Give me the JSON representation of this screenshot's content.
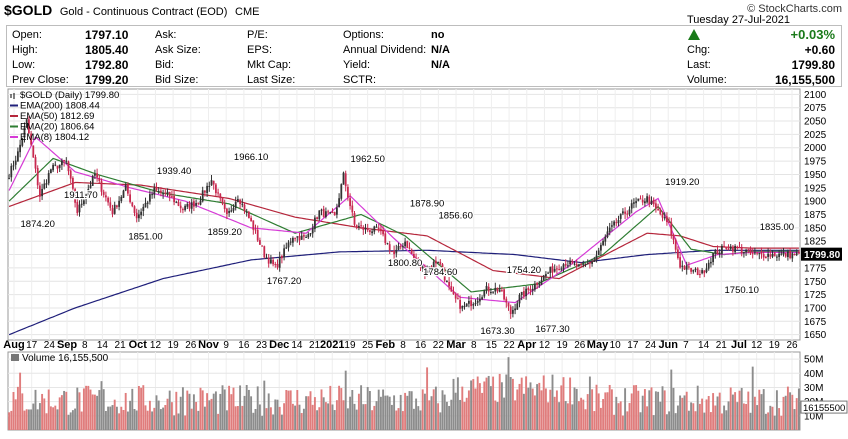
{
  "header": {
    "symbol": "$GOLD",
    "name": "Gold - Continuous Contract (EOD)",
    "exchange": "CME",
    "credit": "© StockCharts.com"
  },
  "quote": {
    "col1": [
      {
        "label": "Open:",
        "value": "1797.10"
      },
      {
        "label": "High:",
        "value": "1805.40"
      },
      {
        "label": "Low:",
        "value": "1792.80"
      },
      {
        "label": "Prev Close:",
        "value": "1799.20"
      }
    ],
    "col2": [
      "Ask:",
      "Ask Size:",
      "Bid:",
      "Bid Size:"
    ],
    "col3": [
      "P/E:",
      "EPS:",
      "Mkt Cap:",
      "Last Size:"
    ],
    "col4": [
      {
        "label": "Options:",
        "value": "no"
      },
      {
        "label": "Annual Dividend:",
        "value": "N/A"
      },
      {
        "label": "Yield:",
        "value": "N/A"
      },
      {
        "label": "SCTR:",
        "value": ""
      }
    ],
    "date": "Tuesday   27-Jul-2021",
    "change_pct": "+0.03%",
    "chg_label": "Chg:",
    "chg_value": "+0.60",
    "last_label": "Last:",
    "last_value": "1799.80",
    "volume_label": "Volume:",
    "volume_value": "16,155,500",
    "up_color": "#1a7a1a"
  },
  "chart_data": {
    "type": "candlestick",
    "legend": [
      {
        "name": "$GOLD (Daily) 1799.80",
        "color": "#000000"
      },
      {
        "name": "EMA(200) 1808.44",
        "color": "#1f1f7a"
      },
      {
        "name": "EMA(50) 1812.69",
        "color": "#b5263b"
      },
      {
        "name": "EMA(20) 1806.64",
        "color": "#2e7d32"
      },
      {
        "name": "EMA(8) 1804.12",
        "color": "#d63bd6"
      }
    ],
    "price_axis": {
      "min": 1640,
      "max": 2110,
      "ticks": [
        2100,
        2075,
        2050,
        2025,
        2000,
        1975,
        1950,
        1925,
        1900,
        1875,
        1850,
        1825,
        1800,
        1775,
        1750,
        1725,
        1700,
        1675,
        1650
      ]
    },
    "last_price_label": "1799.80",
    "x_ticks": [
      "Aug",
      "17",
      "24",
      "Sep",
      "8",
      "14",
      "21",
      "Oct",
      "12",
      "19",
      "26",
      "Nov",
      "9",
      "16",
      "23",
      "Dec",
      "14",
      "21",
      "2021",
      "19",
      "25",
      "Feb",
      "8",
      "16",
      "22",
      "Mar",
      "8",
      "15",
      "22",
      "Apr",
      "12",
      "19",
      "26",
      "May",
      "10",
      "17",
      "24",
      "Jun",
      "7",
      "14",
      "21",
      "Jul",
      "12",
      "19",
      "26"
    ],
    "price_keypoints": [
      {
        "i": 0,
        "close": 1950
      },
      {
        "i": 4,
        "close": 1990
      },
      {
        "i": 8,
        "close": 2050
      },
      {
        "i": 14,
        "close": 1910
      },
      {
        "i": 19,
        "close": 1960
      },
      {
        "i": 26,
        "close": 1974
      },
      {
        "i": 31,
        "close": 1880
      },
      {
        "i": 39,
        "close": 1950
      },
      {
        "i": 47,
        "close": 1880
      },
      {
        "i": 53,
        "close": 1925
      },
      {
        "i": 58,
        "close": 1870
      },
      {
        "i": 66,
        "close": 1920
      },
      {
        "i": 73,
        "close": 1910
      },
      {
        "i": 79,
        "close": 1885
      },
      {
        "i": 86,
        "close": 1900
      },
      {
        "i": 92,
        "close": 1940
      },
      {
        "i": 99,
        "close": 1870
      },
      {
        "i": 104,
        "close": 1910
      },
      {
        "i": 110,
        "close": 1860
      },
      {
        "i": 116,
        "close": 1800
      },
      {
        "i": 121,
        "close": 1775
      },
      {
        "i": 129,
        "close": 1835
      },
      {
        "i": 135,
        "close": 1830
      },
      {
        "i": 141,
        "close": 1880
      },
      {
        "i": 148,
        "close": 1870
      },
      {
        "i": 152,
        "close": 1948
      },
      {
        "i": 157,
        "close": 1855
      },
      {
        "i": 162,
        "close": 1847
      },
      {
        "i": 168,
        "close": 1845
      },
      {
        "i": 175,
        "close": 1800
      },
      {
        "i": 180,
        "close": 1825
      },
      {
        "i": 185,
        "close": 1785
      },
      {
        "i": 189,
        "close": 1770
      },
      {
        "i": 195,
        "close": 1790
      },
      {
        "i": 201,
        "close": 1725
      },
      {
        "i": 206,
        "close": 1700
      },
      {
        "i": 212,
        "close": 1715
      },
      {
        "i": 217,
        "close": 1735
      },
      {
        "i": 223,
        "close": 1735
      },
      {
        "i": 228,
        "close": 1690
      },
      {
        "i": 232,
        "close": 1720
      },
      {
        "i": 238,
        "close": 1740
      },
      {
        "i": 246,
        "close": 1770
      },
      {
        "i": 253,
        "close": 1785
      },
      {
        "i": 260,
        "close": 1775
      },
      {
        "i": 266,
        "close": 1790
      },
      {
        "i": 272,
        "close": 1840
      },
      {
        "i": 278,
        "close": 1870
      },
      {
        "i": 284,
        "close": 1895
      },
      {
        "i": 290,
        "close": 1905
      },
      {
        "i": 295,
        "close": 1880
      },
      {
        "i": 300,
        "close": 1855
      },
      {
        "i": 305,
        "close": 1780
      },
      {
        "i": 310,
        "close": 1770
      },
      {
        "i": 315,
        "close": 1765
      },
      {
        "i": 320,
        "close": 1800
      },
      {
        "i": 326,
        "close": 1815
      },
      {
        "i": 332,
        "close": 1810
      },
      {
        "i": 338,
        "close": 1800
      }
    ],
    "ema_keypoints": {
      "ema200": [
        [
          0,
          1650
        ],
        [
          30,
          1700
        ],
        [
          70,
          1755
        ],
        [
          110,
          1790
        ],
        [
          150,
          1805
        ],
        [
          190,
          1808
        ],
        [
          230,
          1800
        ],
        [
          260,
          1785
        ],
        [
          290,
          1800
        ],
        [
          320,
          1808
        ],
        [
          338,
          1808
        ]
      ],
      "ema50": [
        [
          0,
          1890
        ],
        [
          30,
          1935
        ],
        [
          60,
          1930
        ],
        [
          100,
          1905
        ],
        [
          130,
          1870
        ],
        [
          160,
          1850
        ],
        [
          190,
          1835
        ],
        [
          220,
          1770
        ],
        [
          250,
          1755
        ],
        [
          290,
          1840
        ],
        [
          305,
          1835
        ],
        [
          320,
          1815
        ],
        [
          338,
          1812
        ]
      ],
      "ema20": [
        [
          0,
          1900
        ],
        [
          20,
          1980
        ],
        [
          40,
          1950
        ],
        [
          70,
          1915
        ],
        [
          100,
          1895
        ],
        [
          130,
          1840
        ],
        [
          160,
          1875
        ],
        [
          180,
          1835
        ],
        [
          210,
          1730
        ],
        [
          240,
          1745
        ],
        [
          270,
          1800
        ],
        [
          295,
          1890
        ],
        [
          310,
          1810
        ],
        [
          325,
          1800
        ],
        [
          338,
          1806
        ]
      ],
      "ema8": [
        [
          0,
          1920
        ],
        [
          12,
          2020
        ],
        [
          30,
          1955
        ],
        [
          55,
          1925
        ],
        [
          80,
          1900
        ],
        [
          110,
          1850
        ],
        [
          135,
          1840
        ],
        [
          155,
          1910
        ],
        [
          175,
          1830
        ],
        [
          205,
          1720
        ],
        [
          230,
          1710
        ],
        [
          255,
          1780
        ],
        [
          285,
          1880
        ],
        [
          295,
          1905
        ],
        [
          308,
          1780
        ],
        [
          322,
          1800
        ],
        [
          338,
          1804
        ]
      ]
    },
    "annotations": [
      {
        "i": 13,
        "price": 1874.2,
        "text": "1874.20",
        "pos": "below"
      },
      {
        "i": 43,
        "price": 1911.7,
        "text": "1911.70",
        "pos": "left"
      },
      {
        "i": 62,
        "price": 1851.0,
        "text": "1851.00",
        "pos": "below"
      },
      {
        "i": 75,
        "price": 1939.4,
        "text": "1939.40",
        "pos": "above"
      },
      {
        "i": 98,
        "price": 1859.2,
        "text": "1859.20",
        "pos": "below"
      },
      {
        "i": 110,
        "price": 1966.1,
        "text": "1966.10",
        "pos": "above"
      },
      {
        "i": 125,
        "price": 1767.2,
        "text": "1767.20",
        "pos": "below"
      },
      {
        "i": 163,
        "price": 1962.5,
        "text": "1962.50",
        "pos": "above"
      },
      {
        "i": 180,
        "price": 1800.8,
        "text": "1800.80",
        "pos": "below"
      },
      {
        "i": 190,
        "price": 1878.9,
        "text": "1878.90",
        "pos": "above"
      },
      {
        "i": 203,
        "price": 1856.6,
        "text": "1856.60",
        "pos": "above"
      },
      {
        "i": 196,
        "price": 1784.6,
        "text": "1784.60",
        "pos": "below"
      },
      {
        "i": 234,
        "price": 1754.2,
        "text": "1754.20",
        "pos": "above"
      },
      {
        "i": 222,
        "price": 1673.3,
        "text": "1673.30",
        "pos": "below"
      },
      {
        "i": 247,
        "price": 1677.3,
        "text": "1677.30",
        "pos": "below"
      },
      {
        "i": 306,
        "price": 1919.2,
        "text": "1919.20",
        "pos": "above"
      },
      {
        "i": 333,
        "price": 1750.1,
        "text": "1750.10",
        "pos": "below"
      },
      {
        "i": 349,
        "price": 1835.0,
        "text": "1835.00",
        "pos": "above"
      }
    ],
    "volume": {
      "label": "Volume 16,155,500",
      "axis_ticks": [
        "50M",
        "40M",
        "30M",
        "20M",
        "10M"
      ],
      "axis_max": 55,
      "last_label": "16155500",
      "up_color": "#e07c7c",
      "down_color": "#8c8c8c"
    }
  }
}
